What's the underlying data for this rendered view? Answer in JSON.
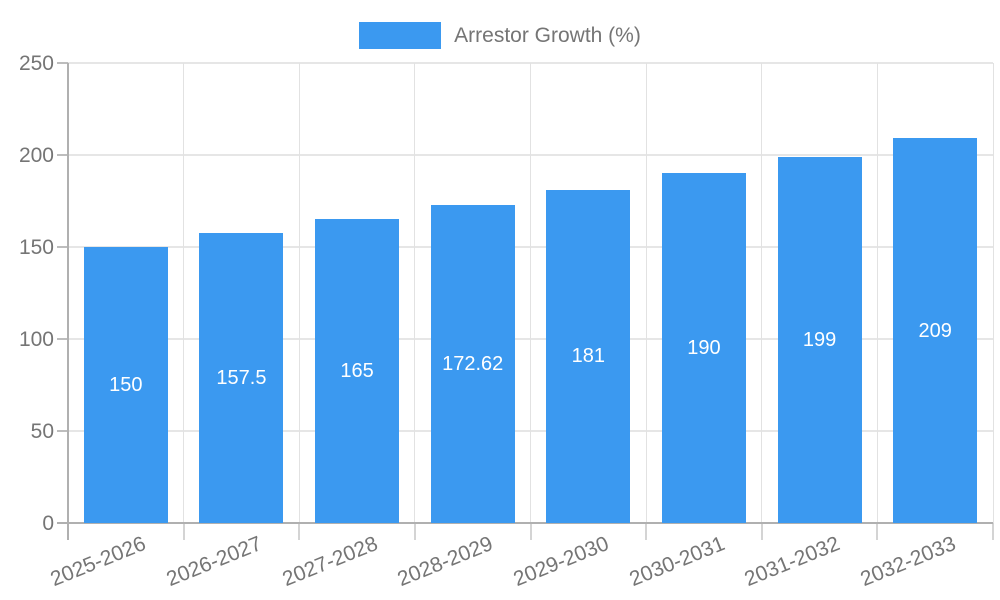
{
  "legend": {
    "label": "Arrestor Growth (%)"
  },
  "chart_data": {
    "type": "bar",
    "title": "",
    "xlabel": "",
    "ylabel": "",
    "categories": [
      "2025-2026",
      "2026-2027",
      "2027-2028",
      "2028-2029",
      "2029-2030",
      "2030-2031",
      "2031-2032",
      "2032-2033"
    ],
    "series": [
      {
        "name": "Arrestor Growth (%)",
        "values": [
          150,
          157.5,
          165,
          172.62,
          181,
          190,
          199,
          209
        ],
        "value_labels": [
          "150",
          "157.5",
          "165",
          "172.62",
          "181",
          "190",
          "199",
          "209"
        ]
      }
    ],
    "ylim": [
      0,
      250
    ],
    "yticks": [
      0,
      50,
      100,
      150,
      200,
      250
    ],
    "grid": true,
    "legend_position": "top",
    "colors": {
      "bar": "#3b99f0",
      "bar_label": "#ffffff",
      "grid": "#e6e6e6",
      "axis": "#b0b0b0",
      "text": "#757575"
    }
  }
}
